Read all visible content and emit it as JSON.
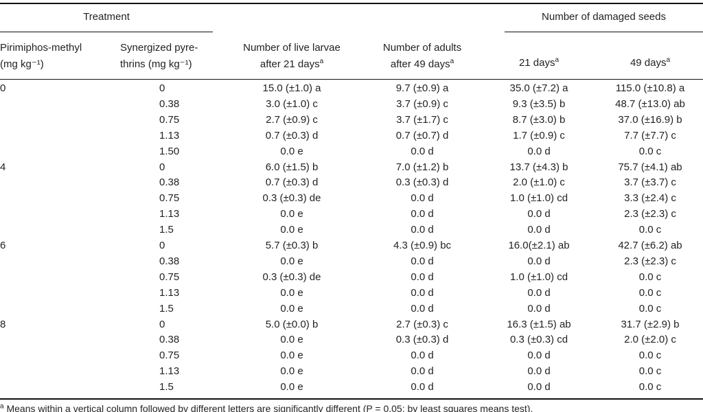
{
  "header": {
    "treatment": "Treatment",
    "damaged_seeds": "Number of damaged seeds",
    "columns": [
      {
        "lines": [
          "Pirimiphos-methyl",
          "(mg kg⁻¹)"
        ]
      },
      {
        "lines": [
          "Synergized pyre-",
          "thrins (mg kg⁻¹)"
        ]
      },
      {
        "lines": [
          "Number of live larvae",
          "after 21 days"
        ],
        "note": "a"
      },
      {
        "lines": [
          "Number of adults",
          "after 49 days"
        ],
        "note": "a"
      },
      {
        "lines": [
          "21 days"
        ],
        "note": "a"
      },
      {
        "lines": [
          "49 days"
        ],
        "note": "a"
      }
    ]
  },
  "table": {
    "rows": [
      [
        "0",
        "0",
        "15.0 (±1.0) a",
        "9.7 (±0.9) a",
        "35.0 (±7.2) a",
        "115.0 (±10.8) a"
      ],
      [
        null,
        "0.38",
        "3.0 (±1.0) c",
        "3.7 (±0.9) c",
        "9.3 (±3.5) b",
        "48.7 (±13.0) ab"
      ],
      [
        null,
        "0.75",
        "2.7 (±0.9) c",
        "3.7 (±1.7) c",
        "8.7 (±3.0) b",
        "37.0 (±16.9) b"
      ],
      [
        null,
        "1.13",
        "0.7 (±0.3) d",
        "0.7 (±0.7) d",
        "1.7 (±0.9) c",
        "7.7 (±7.7) c"
      ],
      [
        null,
        "1.50",
        "0.0 e",
        "0.0 d",
        "0.0 d",
        "0.0 c"
      ],
      [
        "4",
        "0",
        "6.0 (±1.5) b",
        "7.0 (±1.2) b",
        "13.7 (±4.3) b",
        "75.7 (±4.1) ab"
      ],
      [
        null,
        "0.38",
        "0.7 (±0.3) d",
        "0.3 (±0.3) d",
        "2.0 (±1.0) c",
        "3.7 (±3.7) c"
      ],
      [
        null,
        "0.75",
        "0.3 (±0.3) de",
        "0.0 d",
        "1.0 (±1.0) cd",
        "3.3 (±2.4) c"
      ],
      [
        null,
        "1.13",
        "0.0 e",
        "0.0 d",
        "0.0 d",
        "2.3 (±2.3) c"
      ],
      [
        null,
        "1.5",
        "0.0 e",
        "0.0 d",
        "0.0 d",
        "0.0 c"
      ],
      [
        "6",
        "0",
        "5.7 (±0.3) b",
        "4.3 (±0.9) bc",
        "16.0(±2.1) ab",
        "42.7 (±6.2) ab"
      ],
      [
        null,
        "0.38",
        "0.0 e",
        "0.0 d",
        "0.0 d",
        "2.3 (±2.3) c"
      ],
      [
        null,
        "0.75",
        "0.3 (±0.3) de",
        "0.0 d",
        "1.0 (±1.0) cd",
        "0.0 c"
      ],
      [
        null,
        "1.13",
        "0.0 e",
        "0.0 d",
        "0.0 d",
        "0.0 c"
      ],
      [
        null,
        "1.5",
        "0.0 e",
        "0.0 d",
        "0.0 d",
        "0.0 c"
      ],
      [
        "8",
        "0",
        "5.0 (±0.0) b",
        "2.7 (±0.3) c",
        "16.3 (±1.5) ab",
        "31.7 (±2.9) b"
      ],
      [
        null,
        "0.38",
        "0.0 e",
        "0.3 (±0.3) d",
        "0.3 (±0.3) cd",
        "2.0 (±2.0) c"
      ],
      [
        null,
        "0.75",
        "0.0 e",
        "0.0 d",
        "0.0 d",
        "0.0 c"
      ],
      [
        null,
        "1.13",
        "0.0 e",
        "0.0 d",
        "0.0 d",
        "0.0 c"
      ],
      [
        null,
        "1.5",
        "0.0 e",
        "0.0 d",
        "0.0 d",
        "0.0 c"
      ]
    ]
  },
  "footnote": {
    "marker": "a",
    "text": "Means within a vertical column followed by different letters are significantly different (P = 0.05; by least squares means test)."
  }
}
